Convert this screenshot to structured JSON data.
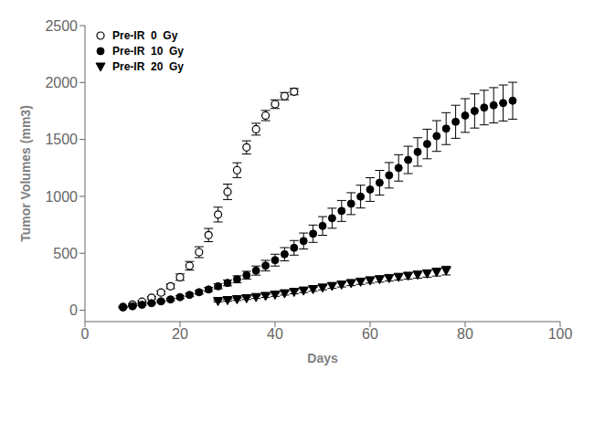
{
  "chart_data": {
    "type": "scatter",
    "xlabel": "Days",
    "ylabel": "Tumor Volumes (mm3)",
    "xlim": [
      0,
      100
    ],
    "ylim": [
      -100,
      2500
    ],
    "xticks": [
      0,
      20,
      40,
      60,
      80,
      100
    ],
    "yticks": [
      0,
      500,
      1000,
      1500,
      2000,
      2500
    ],
    "grid": false,
    "legend": "upper left",
    "series": [
      {
        "name": "Pre-IR  0  Gy",
        "color": "#000000",
        "marker": "circle_open",
        "x": [
          8,
          10,
          12,
          14,
          16,
          18,
          20,
          22,
          24,
          26,
          28,
          30,
          32,
          34,
          36,
          38,
          40,
          42,
          44
        ],
        "values": [
          30,
          50,
          75,
          110,
          155,
          210,
          290,
          390,
          510,
          660,
          840,
          1040,
          1230,
          1430,
          1590,
          1710,
          1810,
          1880,
          1920
        ],
        "errors": [
          5,
          6,
          8,
          11,
          15,
          20,
          28,
          38,
          48,
          58,
          65,
          68,
          65,
          58,
          52,
          45,
          38,
          32,
          28
        ]
      },
      {
        "name": "Pre-IR  10  Gy",
        "color": "#000000",
        "marker": "circle",
        "x": [
          8,
          10,
          12,
          14,
          16,
          18,
          20,
          22,
          24,
          26,
          28,
          30,
          32,
          34,
          36,
          38,
          40,
          42,
          44,
          46,
          48,
          50,
          52,
          54,
          56,
          58,
          60,
          62,
          64,
          66,
          68,
          70,
          72,
          74,
          76,
          78,
          80,
          82,
          84,
          86,
          88,
          90
        ],
        "values": [
          25,
          35,
          48,
          62,
          78,
          95,
          115,
          135,
          158,
          182,
          210,
          240,
          272,
          308,
          348,
          392,
          440,
          492,
          548,
          608,
          672,
          740,
          808,
          872,
          936,
          998,
          1060,
          1120,
          1185,
          1250,
          1320,
          1390,
          1460,
          1530,
          1595,
          1655,
          1710,
          1750,
          1780,
          1800,
          1820,
          1840
        ],
        "errors": [
          5,
          5,
          6,
          7,
          8,
          10,
          12,
          14,
          16,
          18,
          22,
          26,
          30,
          34,
          40,
          46,
          52,
          58,
          64,
          70,
          76,
          82,
          88,
          92,
          96,
          100,
          104,
          108,
          112,
          116,
          120,
          125,
          130,
          135,
          140,
          145,
          148,
          150,
          152,
          155,
          158,
          162
        ]
      },
      {
        "name": "Pre-IR  20  Gy",
        "color": "#000000",
        "marker": "triangle_down",
        "x": [
          28,
          30,
          32,
          34,
          36,
          38,
          40,
          42,
          44,
          46,
          48,
          50,
          52,
          54,
          56,
          58,
          60,
          62,
          64,
          66,
          68,
          70,
          72,
          74,
          76
        ],
        "values": [
          80,
          88,
          96,
          105,
          115,
          125,
          136,
          148,
          160,
          172,
          185,
          198,
          212,
          225,
          238,
          250,
          262,
          272,
          282,
          292,
          302,
          312,
          322,
          335,
          348
        ],
        "errors": [
          8,
          9,
          10,
          11,
          12,
          13,
          14,
          15,
          16,
          17,
          18,
          19,
          20,
          21,
          22,
          23,
          24,
          25,
          26,
          27,
          28,
          30,
          32,
          35,
          38
        ]
      }
    ]
  }
}
